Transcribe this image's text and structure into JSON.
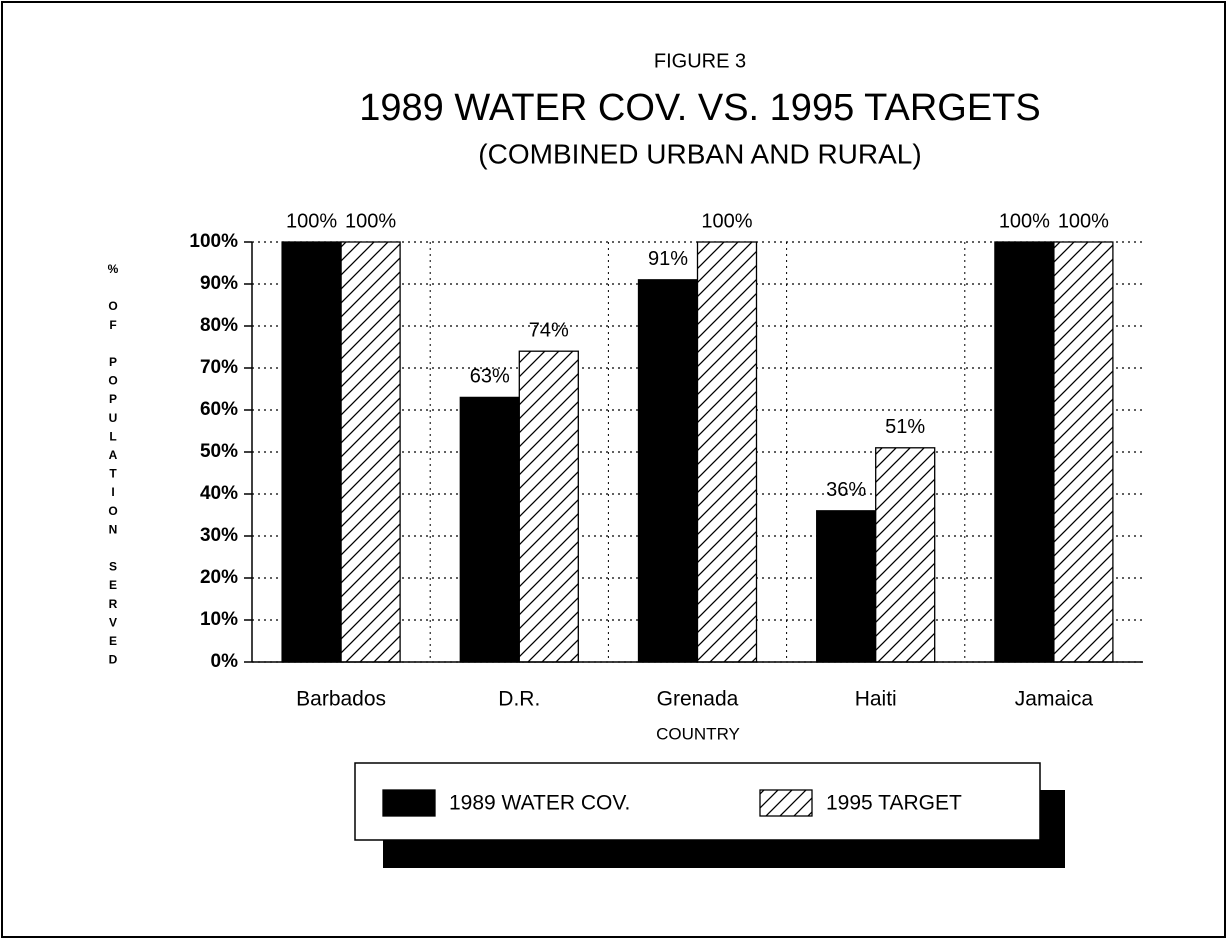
{
  "chart_data": {
    "type": "bar",
    "supertitle": "FIGURE 3",
    "title": "1989 WATER COV. VS. 1995 TARGETS",
    "subtitle": "(COMBINED URBAN AND RURAL)",
    "y_label": "% OF POPULATION SERVED",
    "x_label": "COUNTRY",
    "categories": [
      "Barbados",
      "D.R.",
      "Grenada",
      "Haiti",
      "Jamaica"
    ],
    "series": [
      {
        "name": "1989 WATER COV.",
        "color": "#000000",
        "values": [
          100,
          63,
          91,
          36,
          100
        ],
        "value_labels": [
          "100%",
          "63%",
          "91%",
          "36%",
          "100%"
        ]
      },
      {
        "name": "1995 TARGET",
        "color": "hatch",
        "values": [
          100,
          74,
          100,
          51,
          100
        ],
        "value_labels": [
          "100%",
          "74%",
          "100%",
          "51%",
          "100%"
        ]
      }
    ],
    "ylim": [
      0,
      100
    ],
    "yticks": [
      {
        "value": 0,
        "label": "0%"
      },
      {
        "value": 10,
        "label": "10%"
      },
      {
        "value": 20,
        "label": "20%"
      },
      {
        "value": 30,
        "label": "30%"
      },
      {
        "value": 40,
        "label": "40%"
      },
      {
        "value": 50,
        "label": "50%"
      },
      {
        "value": 60,
        "label": "60%"
      },
      {
        "value": 70,
        "label": "70%"
      },
      {
        "value": 80,
        "label": "80%"
      },
      {
        "value": 90,
        "label": "90%"
      },
      {
        "value": 100,
        "label": "100%"
      }
    ],
    "grid": true
  }
}
